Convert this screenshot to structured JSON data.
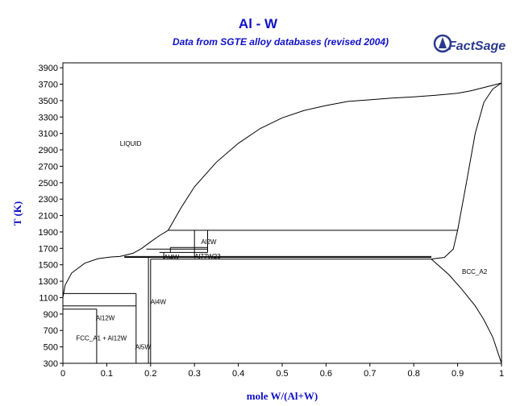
{
  "chart_data": {
    "type": "line",
    "title": "Al - W",
    "subtitle": "Data from SGTE alloy databases (revised 2004)",
    "xlabel": "mole W/(Al+W)",
    "ylabel": "T (K)",
    "xlim": [
      0,
      1
    ],
    "ylim": [
      300,
      3700
    ],
    "x_ticks": [
      "0",
      "0.1",
      "0.2",
      "0.3",
      "0.4",
      "0.5",
      "0.6",
      "0.7",
      "0.8",
      "0.9",
      "1"
    ],
    "y_ticks": [
      "300",
      "500",
      "700",
      "900",
      "1100",
      "1300",
      "1500",
      "1700",
      "1900",
      "2100",
      "2300",
      "2500",
      "2700",
      "2900",
      "3100",
      "3300",
      "3500",
      "3700",
      "3900"
    ],
    "grid": false,
    "series": [
      {
        "points": [
          [
            0,
            1100
          ],
          [
            0.005,
            1250
          ],
          [
            0.02,
            1400
          ],
          [
            0.05,
            1520
          ],
          [
            0.08,
            1575
          ],
          [
            0.11,
            1595
          ],
          [
            0.13,
            1601
          ]
        ]
      },
      {
        "points": [
          [
            0.13,
            1601
          ],
          [
            0.16,
            1640
          ],
          [
            0.18,
            1700
          ],
          [
            0.2,
            1780
          ],
          [
            0.22,
            1855
          ],
          [
            0.24,
            1920
          ]
        ]
      },
      {
        "points": [
          [
            0.24,
            1920
          ],
          [
            0.27,
            2200
          ],
          [
            0.3,
            2450
          ],
          [
            0.35,
            2750
          ],
          [
            0.4,
            2980
          ],
          [
            0.45,
            3160
          ],
          [
            0.5,
            3290
          ],
          [
            0.55,
            3380
          ],
          [
            0.6,
            3440
          ],
          [
            0.65,
            3490
          ],
          [
            0.7,
            3510
          ],
          [
            0.75,
            3530
          ],
          [
            0.8,
            3545
          ],
          [
            0.85,
            3565
          ],
          [
            0.9,
            3590
          ],
          [
            0.93,
            3620
          ],
          [
            0.96,
            3660
          ],
          [
            0.99,
            3700
          ],
          [
            1,
            3715
          ]
        ]
      },
      {
        "points": [
          [
            0.84,
            1570
          ],
          [
            0.87,
            1590
          ],
          [
            0.89,
            1690
          ],
          [
            0.9,
            1920
          ],
          [
            0.92,
            2500
          ],
          [
            0.94,
            3100
          ],
          [
            0.96,
            3480
          ],
          [
            0.98,
            3640
          ],
          [
            1,
            3715
          ]
        ]
      },
      {
        "points": [
          [
            0.84,
            1570
          ],
          [
            0.88,
            1380
          ],
          [
            0.91,
            1200
          ],
          [
            0.94,
            1000
          ],
          [
            0.96,
            830
          ],
          [
            0.98,
            620
          ],
          [
            0.995,
            380
          ],
          [
            1,
            300
          ]
        ]
      },
      {
        "points": [
          [
            0.24,
            1920
          ],
          [
            0.9,
            1920
          ]
        ]
      },
      {
        "points": [
          [
            0.14,
            1601
          ],
          [
            0.84,
            1601
          ]
        ]
      },
      {
        "points": [
          [
            0.14,
            1590
          ],
          [
            0.84,
            1590
          ]
        ]
      },
      {
        "points": [
          [
            0.2,
            1570
          ],
          [
            0.84,
            1570
          ]
        ]
      },
      {
        "points": [
          [
            0.19,
            1690
          ],
          [
            0.33,
            1690
          ]
        ]
      },
      {
        "points": [
          [
            0.245,
            1710
          ],
          [
            0.33,
            1710
          ]
        ]
      },
      {
        "points": [
          [
            0.22,
            1650
          ],
          [
            0.33,
            1650
          ]
        ]
      },
      {
        "points": [
          [
            0.3,
            1920
          ],
          [
            0.3,
            1590
          ]
        ]
      },
      {
        "points": [
          [
            0.33,
            1920
          ],
          [
            0.33,
            1650
          ]
        ]
      },
      {
        "points": [
          [
            0.245,
            1710
          ],
          [
            0.245,
            1650
          ]
        ]
      },
      {
        "points": [
          [
            0.23,
            1650
          ],
          [
            0.23,
            1570
          ]
        ]
      },
      {
        "points": [
          [
            0.2,
            1570
          ],
          [
            0.2,
            300
          ]
        ]
      },
      {
        "points": [
          [
            0.195,
            1590
          ],
          [
            0.195,
            300
          ]
        ]
      },
      {
        "points": [
          [
            0,
            1150
          ],
          [
            0.167,
            1150
          ]
        ]
      },
      {
        "points": [
          [
            0,
            1000
          ],
          [
            0.167,
            1000
          ]
        ]
      },
      {
        "points": [
          [
            0.167,
            1150
          ],
          [
            0.167,
            300
          ]
        ]
      },
      {
        "points": [
          [
            0,
            960
          ],
          [
            0.077,
            960
          ]
        ]
      },
      {
        "points": [
          [
            0.077,
            960
          ],
          [
            0.077,
            300
          ]
        ]
      }
    ],
    "region_labels": [
      {
        "text": "LIQUID",
        "x": 0.13,
        "y": 2950
      },
      {
        "text": "BCC_A2",
        "x": 0.91,
        "y": 1390
      },
      {
        "text": "Al2W",
        "x": 0.315,
        "y": 1750
      },
      {
        "text": "Al4W",
        "x": 0.23,
        "y": 1565
      },
      {
        "text": "Al77W23",
        "x": 0.3,
        "y": 1575
      },
      {
        "text": "Al4W",
        "x": 0.2,
        "y": 1020
      },
      {
        "text": "Al12W",
        "x": 0.075,
        "y": 825
      },
      {
        "text": "FCC_A1 + Al12W",
        "x": 0.03,
        "y": 580
      },
      {
        "text": "Al5W",
        "x": 0.165,
        "y": 470
      }
    ]
  },
  "logo": {
    "text": "FactSage",
    "color": "#2a3a8c"
  }
}
